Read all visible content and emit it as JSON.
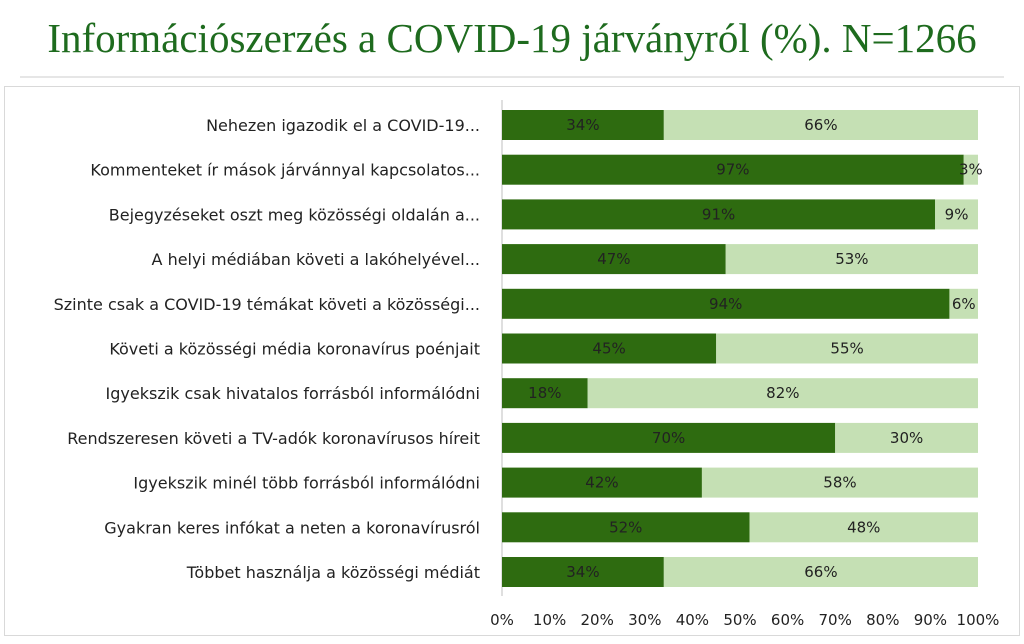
{
  "title": "Információszerzés a COVID-19 járványról (%). N=1266",
  "chart_data": {
    "type": "bar",
    "orientation": "horizontal",
    "stacked": true,
    "percent_stacked": true,
    "categories": [
      "Nehezen igazodik el a COVID-19...",
      "Kommenteket ír mások járvánnyal kapcsolatos...",
      "Bejegyzéseket oszt meg közösségi oldalán a...",
      "A helyi médiában követi a lakóhelyével...",
      "Szinte csak a COVID-19 témákat követi a közösségi...",
      "Követi a közösségi média koronavírus poénjait",
      "Igyekszik csak hivatalos forrásból informálódni",
      "Rendszeresen követi a TV-adók koronavírusos híreit",
      "Igyekszik minél több forrásból informálódni",
      "Gyakran keres infókat a neten a koronavírusról",
      "Többet használja a közösségi médiát"
    ],
    "series": [
      {
        "values": [
          34,
          97,
          91,
          47,
          94,
          45,
          18,
          70,
          42,
          52,
          34
        ],
        "color": "#2e6b10"
      },
      {
        "values": [
          66,
          3,
          9,
          53,
          6,
          55,
          82,
          30,
          58,
          48,
          66
        ],
        "color": "#c5e0b4"
      }
    ],
    "value_labels": [
      [
        "34%",
        "97%",
        "91%",
        "47%",
        "94%",
        "45%",
        "18%",
        "70%",
        "42%",
        "52%",
        "34%"
      ],
      [
        "66%",
        "3%",
        "9%",
        "53%",
        "6%",
        "55%",
        "82%",
        "30%",
        "58%",
        "48%",
        "66%"
      ]
    ],
    "xlim": [
      0,
      100
    ],
    "xticks": [
      "0%",
      "10%",
      "20%",
      "30%",
      "40%",
      "50%",
      "60%",
      "70%",
      "80%",
      "90%",
      "100%"
    ],
    "xlabel": "",
    "ylabel": "",
    "grid": false,
    "legend": "none"
  }
}
